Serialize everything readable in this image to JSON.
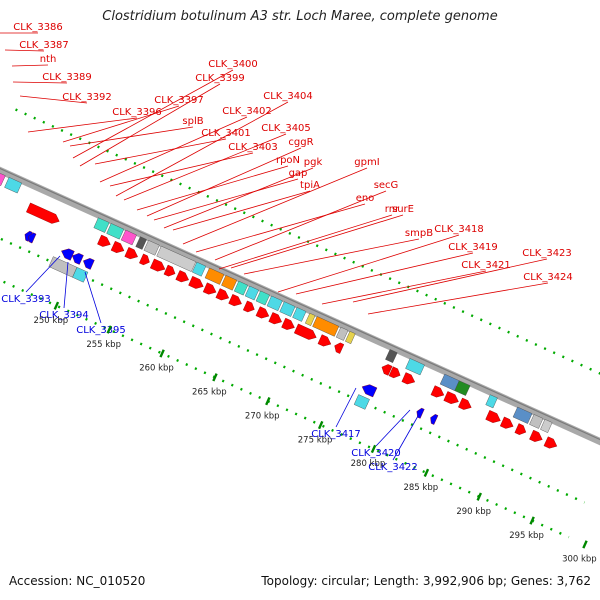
{
  "title": "Clostridium botulinum A3 str. Loch Maree, complete genome",
  "footer": {
    "accession": "Accession: NC_010520",
    "summary": "Topology: circular; Length: 3,992,906 bp; Genes: 3,762"
  },
  "colors": {
    "backbone": "#a9a9a9",
    "forward_cds": "#ff0000",
    "reverse_cds": "#0000ff",
    "forward_label": "#dd0000",
    "reverse_label": "#0000dd",
    "tick": "#008800",
    "dot": "#00aa00"
  },
  "scale_ticks": [
    {
      "label": "250 kbp",
      "kbp": 250
    },
    {
      "label": "255 kbp",
      "kbp": 255
    },
    {
      "label": "260 kbp",
      "kbp": 260
    },
    {
      "label": "265 kbp",
      "kbp": 265
    },
    {
      "label": "270 kbp",
      "kbp": 270
    },
    {
      "label": "275 kbp",
      "kbp": 275
    },
    {
      "label": "280 kbp",
      "kbp": 280
    },
    {
      "label": "285 kbp",
      "kbp": 285
    },
    {
      "label": "290 kbp",
      "kbp": 290
    },
    {
      "label": "295 kbp",
      "kbp": 295
    },
    {
      "label": "300 kbp",
      "kbp": 300
    }
  ],
  "forward_labels": [
    "CLK_3386",
    "CLK_3387",
    "nth",
    "CLK_3389",
    "CLK_3392",
    "CLK_3396",
    "CLK_3397",
    "splB",
    "CLK_3400",
    "CLK_3399",
    "CLK_3401",
    "CLK_3402",
    "CLK_3403",
    "CLK_3404",
    "CLK_3405",
    "rpoN",
    "cggR",
    "gap",
    "pgk",
    "tpiA",
    "gpmI",
    "eno",
    "secG",
    "rnr",
    "surE",
    "smpB",
    "CLK_3418",
    "CLK_3419",
    "CLK_3421",
    "CLK_3423",
    "CLK_3424"
  ],
  "reverse_labels": [
    "CLK_3393",
    "CLK_3394",
    "CLK_3395",
    "CLK_3417",
    "CLK_3420",
    "CLK_3422"
  ],
  "cog_colors": [
    "#4dd9e6",
    "#40e0c8",
    "#ff55cc",
    "#9966cc",
    "#5a8fc7",
    "#228b22",
    "#ff8c00",
    "#cccccc",
    "#555555",
    "#e6d24d",
    "#c0c0c0"
  ]
}
